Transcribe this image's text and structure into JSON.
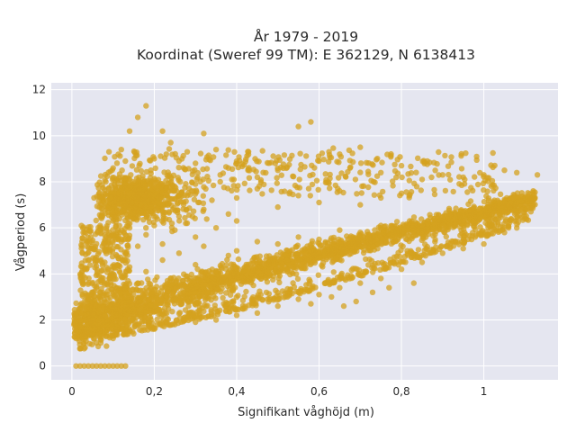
{
  "chart_data": {
    "type": "scatter",
    "title": "År 1979 - 2019",
    "subtitle": "Koordinat (Sweref 99 TM): E 362129, N 6138413",
    "xlabel": "Signifikant våghöjd (m)",
    "ylabel": "Vågperiod (s)",
    "xlim": [
      -0.05,
      1.18
    ],
    "ylim": [
      -0.6,
      12.3
    ],
    "x_ticks": [
      0,
      0.2,
      0.4,
      0.6,
      0.8,
      1
    ],
    "x_tick_labels": [
      "0",
      "0,2",
      "0,4",
      "0,6",
      "0,8",
      "1"
    ],
    "y_ticks": [
      0,
      2,
      4,
      6,
      8,
      10,
      12
    ],
    "y_tick_labels": [
      "0",
      "2",
      "4",
      "6",
      "8",
      "10",
      "12"
    ],
    "grid": true,
    "legend": "none",
    "colors": {
      "marker": "#d4a21f",
      "plot_bg": "#e5e6f0",
      "grid": "#ffffff"
    },
    "series": [
      {
        "marker_opacity": 0.75,
        "points": [
          [
            0.01,
            0
          ],
          [
            0.02,
            0
          ],
          [
            0.03,
            0
          ],
          [
            0.04,
            0
          ],
          [
            0.05,
            0
          ],
          [
            0.06,
            0
          ],
          [
            0.07,
            0
          ],
          [
            0.08,
            0
          ],
          [
            0.09,
            0
          ],
          [
            0.1,
            0
          ],
          [
            0.11,
            0
          ],
          [
            0.12,
            0
          ],
          [
            0.13,
            0
          ],
          [
            0.01,
            1.2
          ],
          [
            0.015,
            1.5
          ],
          [
            0.02,
            1.7
          ],
          [
            0.02,
            2.0
          ],
          [
            0.025,
            1.3
          ],
          [
            0.03,
            2.2
          ],
          [
            0.03,
            2.6
          ],
          [
            0.035,
            1.6
          ],
          [
            0.04,
            1.9
          ],
          [
            0.04,
            3.0
          ],
          [
            0.05,
            2.3
          ],
          [
            0.05,
            2.8
          ],
          [
            0.06,
            1.8
          ],
          [
            0.06,
            3.4
          ],
          [
            0.07,
            2.1
          ],
          [
            0.07,
            2.9
          ],
          [
            0.08,
            3.6
          ],
          [
            0.08,
            1.5
          ],
          [
            0.09,
            2.5
          ],
          [
            0.1,
            3.2
          ],
          [
            0.1,
            4.0
          ],
          [
            0.11,
            2.7
          ],
          [
            0.12,
            3.9
          ],
          [
            0.13,
            3.0
          ],
          [
            0.14,
            4.3
          ],
          [
            0.15,
            2.9
          ],
          [
            0.16,
            3.6
          ],
          [
            0.18,
            4.1
          ],
          [
            0.2,
            3.3
          ],
          [
            0.22,
            4.6
          ],
          [
            0.24,
            3.8
          ],
          [
            0.26,
            4.9
          ],
          [
            0.28,
            3.9
          ],
          [
            0.3,
            4.4
          ],
          [
            0.32,
            5.2
          ],
          [
            0.35,
            4.1
          ],
          [
            0.38,
            4.8
          ],
          [
            0.4,
            5.0
          ],
          [
            0.42,
            4.3
          ],
          [
            0.45,
            5.4
          ],
          [
            0.48,
            4.6
          ],
          [
            0.5,
            5.3
          ],
          [
            0.52,
            4.8
          ],
          [
            0.55,
            5.6
          ],
          [
            0.58,
            5.0
          ],
          [
            0.6,
            5.5
          ],
          [
            0.62,
            5.2
          ],
          [
            0.65,
            5.9
          ],
          [
            0.68,
            5.4
          ],
          [
            0.7,
            5.8
          ],
          [
            0.72,
            5.6
          ],
          [
            0.75,
            6.1
          ],
          [
            0.78,
            5.8
          ],
          [
            0.8,
            6.0
          ],
          [
            0.82,
            6.3
          ],
          [
            0.85,
            6.0
          ],
          [
            0.88,
            6.4
          ],
          [
            0.9,
            6.1
          ],
          [
            0.92,
            6.6
          ],
          [
            0.95,
            6.3
          ],
          [
            0.98,
            6.7
          ],
          [
            1.0,
            6.5
          ],
          [
            1.02,
            6.9
          ],
          [
            1.05,
            6.7
          ],
          [
            1.08,
            7.1
          ],
          [
            1.1,
            7.3
          ],
          [
            1.12,
            7.6
          ],
          [
            1.13,
            8.3
          ],
          [
            0.1,
            8.6
          ],
          [
            0.12,
            9.4
          ],
          [
            0.14,
            10.2
          ],
          [
            0.16,
            10.8
          ],
          [
            0.18,
            11.3
          ],
          [
            0.09,
            9.3
          ],
          [
            0.2,
            9.0
          ],
          [
            0.22,
            10.2
          ],
          [
            0.24,
            9.7
          ],
          [
            0.26,
            8.9
          ],
          [
            0.28,
            9.3
          ],
          [
            0.3,
            8.8
          ],
          [
            0.32,
            10.1
          ],
          [
            0.35,
            9.4
          ],
          [
            0.38,
            8.6
          ],
          [
            0.4,
            8.8
          ],
          [
            0.45,
            8.2
          ],
          [
            0.5,
            8.5
          ],
          [
            0.55,
            10.4
          ],
          [
            0.58,
            10.6
          ],
          [
            0.6,
            8.9
          ],
          [
            0.65,
            9.2
          ],
          [
            0.7,
            9.5
          ],
          [
            0.75,
            8.4
          ],
          [
            0.8,
            8.7
          ],
          [
            0.85,
            8.1
          ],
          [
            0.9,
            8.3
          ],
          [
            0.95,
            8.2
          ],
          [
            1.0,
            8.3
          ],
          [
            1.05,
            8.5
          ],
          [
            1.08,
            8.4
          ],
          [
            0.1,
            6.9
          ],
          [
            0.12,
            7.6
          ],
          [
            0.14,
            8.1
          ],
          [
            0.16,
            7.3
          ],
          [
            0.18,
            6.6
          ],
          [
            0.2,
            7.8
          ],
          [
            0.22,
            7.0
          ],
          [
            0.24,
            8.2
          ],
          [
            0.26,
            6.5
          ],
          [
            0.28,
            7.4
          ],
          [
            0.3,
            7.9
          ],
          [
            0.32,
            6.8
          ],
          [
            0.34,
            7.2
          ],
          [
            0.36,
            8.0
          ],
          [
            0.38,
            6.6
          ],
          [
            0.4,
            7.3
          ],
          [
            0.45,
            7.7
          ],
          [
            0.5,
            6.9
          ],
          [
            0.55,
            7.4
          ],
          [
            0.6,
            7.1
          ],
          [
            0.65,
            7.6
          ],
          [
            0.7,
            7.0
          ],
          [
            0.75,
            7.3
          ],
          [
            0.8,
            7.5
          ],
          [
            0.08,
            5.0
          ],
          [
            0.09,
            5.8
          ],
          [
            0.1,
            6.3
          ],
          [
            0.12,
            5.4
          ],
          [
            0.14,
            6.0
          ],
          [
            0.16,
            5.2
          ],
          [
            0.18,
            5.7
          ],
          [
            0.2,
            6.1
          ],
          [
            0.22,
            5.3
          ],
          [
            0.25,
            5.9
          ],
          [
            0.28,
            6.2
          ],
          [
            0.3,
            5.6
          ],
          [
            0.35,
            6.0
          ],
          [
            0.4,
            6.3
          ],
          [
            0.07,
            1.0
          ],
          [
            0.1,
            1.2
          ],
          [
            0.15,
            1.4
          ],
          [
            0.2,
            1.6
          ],
          [
            0.25,
            1.8
          ],
          [
            0.3,
            1.9
          ],
          [
            0.35,
            2.0
          ],
          [
            0.4,
            2.2
          ],
          [
            0.45,
            2.3
          ],
          [
            0.5,
            2.6
          ],
          [
            0.55,
            2.9
          ],
          [
            0.6,
            3.1
          ],
          [
            0.65,
            3.4
          ],
          [
            0.7,
            3.6
          ],
          [
            0.75,
            3.8
          ],
          [
            0.8,
            4.2
          ],
          [
            0.85,
            4.5
          ],
          [
            0.9,
            4.9
          ],
          [
            0.95,
            5.1
          ],
          [
            1.0,
            5.3
          ],
          [
            1.05,
            5.8
          ],
          [
            1.08,
            6.0
          ],
          [
            0.66,
            2.6
          ],
          [
            0.69,
            2.8
          ],
          [
            0.73,
            3.2
          ],
          [
            0.77,
            3.4
          ],
          [
            0.83,
            3.6
          ],
          [
            0.63,
            3.0
          ],
          [
            0.58,
            2.7
          ]
        ]
      }
    ]
  }
}
